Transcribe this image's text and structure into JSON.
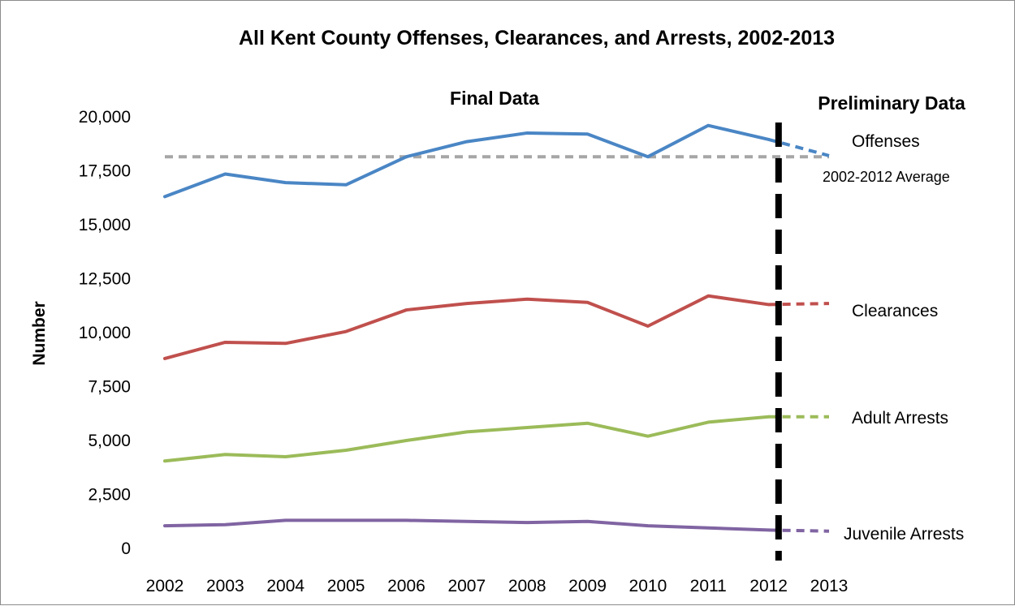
{
  "chart_data": {
    "type": "line",
    "title": "All Kent County Offenses, Clearances, and Arrests, 2002-2013",
    "xlabel": "",
    "ylabel": "Number",
    "ylim": [
      0,
      20000
    ],
    "yticks": [
      0,
      2500,
      5000,
      7500,
      10000,
      12500,
      15000,
      17500,
      20000
    ],
    "ytick_labels": [
      "0",
      "2,500",
      "5,000",
      "7,500",
      "10,000",
      "12,500",
      "15,000",
      "17,500",
      "20,000"
    ],
    "x": [
      "2002",
      "2003",
      "2004",
      "2005",
      "2006",
      "2007",
      "2008",
      "2009",
      "2010",
      "2011",
      "2012",
      "2013"
    ],
    "final_label": "Final Data",
    "preliminary_label": "Preliminary Data",
    "preliminary_from": "2012",
    "grid": false,
    "legend": "direct labels at right",
    "series": [
      {
        "name": "Offenses",
        "color": "#4a86c5",
        "values": [
          16300,
          17350,
          16950,
          16850,
          18150,
          18850,
          19250,
          19200,
          18150,
          19600,
          18950,
          18200
        ]
      },
      {
        "name": "Clearances",
        "color": "#c0504d",
        "values": [
          8800,
          9550,
          9500,
          10050,
          11050,
          11350,
          11550,
          11400,
          10300,
          11700,
          11300,
          11350
        ]
      },
      {
        "name": "Adult Arrests",
        "color": "#9bbb59",
        "values": [
          4050,
          4350,
          4250,
          4550,
          5000,
          5400,
          5600,
          5800,
          5200,
          5850,
          6100,
          6100
        ]
      },
      {
        "name": "Juvenile Arrests",
        "color": "#8064a2",
        "values": [
          1050,
          1100,
          1300,
          1300,
          1300,
          1250,
          1200,
          1250,
          1050,
          950,
          850,
          800
        ]
      }
    ],
    "reference_line": {
      "name": "2002-2012 Average",
      "value": 18150,
      "color": "#a6a6a6",
      "style": "dashed"
    },
    "divider_color": "#000000"
  }
}
